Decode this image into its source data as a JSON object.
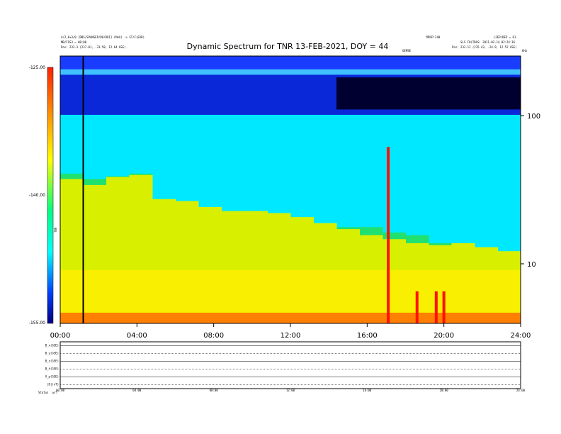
{
  "chart_data": {
    "type": "heatmap",
    "title": "Dynamic Spectrum for TNR 13-FEB-2021, DOY = 44",
    "xlabel": "",
    "ylabel": "",
    "x_ticks": [
      "00:00",
      "04:00",
      "08:00",
      "12:00",
      "16:00",
      "20:00",
      "24:00"
    ],
    "y_ticks": [
      "100",
      "10"
    ],
    "colorbar": {
      "label": "TNR",
      "ticks": [
        "-125.00",
        "-140.00",
        "-155.00"
      ],
      "range": [
        -155,
        -125
      ]
    },
    "header_left": [
      "4/2,0+3/8 [DBS/SPANSEP/DO/DOI] (MeV) -> ST/C(EXB)",
      "MB/FSS3 = 00:00",
      "Pos:   233.3 (237.01, -31.58, 12.64 GSE)"
    ],
    "header_right": [
      "MRSP:240",
      "L2EP/DEP = 61",
      "SLS FULTRAS: 2021-02-14 02:24:16",
      "Pos:   233.12 (235.43, -24.9, 12.52 GSE)"
    ],
    "corner_labels": [
      "kHz",
      "GEMSE"
    ],
    "marker_time_hours": 1.2,
    "bands": {
      "yellow_top_pct": [
        0.72,
        0.69,
        0.73,
        0.74,
        0.62,
        0.61,
        0.58,
        0.56,
        0.56,
        0.55,
        0.53,
        0.5,
        0.47,
        0.44,
        0.42,
        0.4,
        0.39,
        0.4,
        0.38,
        0.36
      ],
      "green_top_pct": [
        0.56,
        0.54,
        0.55,
        0.56,
        0.43,
        0.41,
        0.4,
        0.38,
        0.37,
        0.37,
        0.37,
        0.36,
        0.36,
        0.36,
        0.34,
        0.33,
        0.3,
        0.28,
        0.27,
        0.26
      ]
    },
    "bursts_hours": [
      17.1,
      18.6,
      19.6,
      20.0
    ]
  },
  "lower_panels": {
    "labels": [
      "B_x(GSE)",
      "B_y(GSE)",
      "B_z(GSE)",
      "B_t(GSE)",
      "V_p(GSE)",
      "|B|(nT)"
    ],
    "time_ticks": [
      "00:00",
      "04:00",
      "08:00",
      "12:00",
      "16:00",
      "20:00",
      "24:00"
    ],
    "footer_left": [
      "Status",
      "w/f"
    ]
  }
}
